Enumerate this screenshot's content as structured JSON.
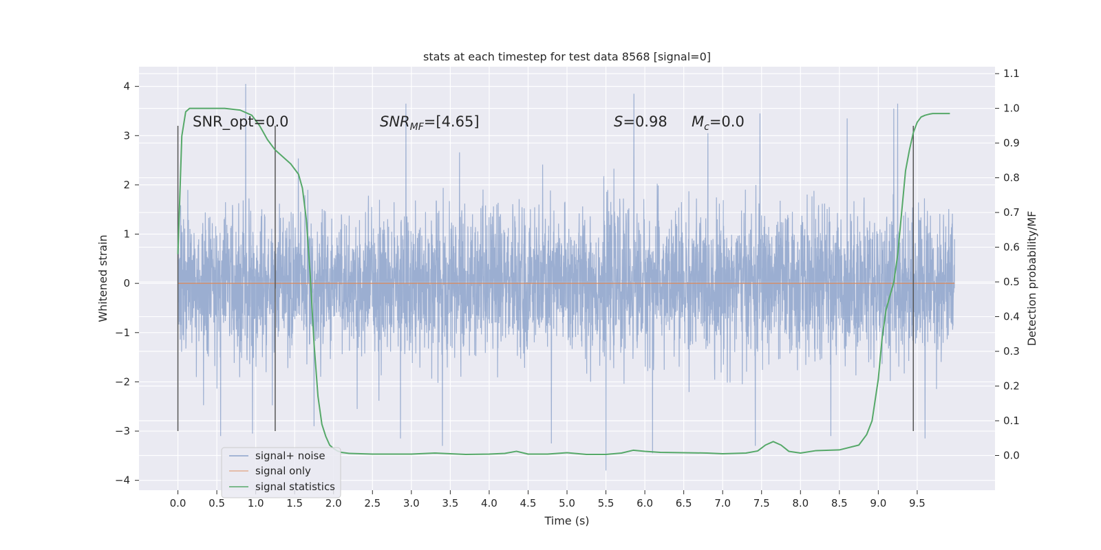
{
  "chart_data": {
    "type": "line",
    "title": "stats at each timestep for test data 8568 [signal=0]",
    "xlabel": "Time (s)",
    "ylabel": "Whitened strain",
    "ylabel_right": "Detection probability/MF",
    "xlim": [
      -0.5,
      10.5
    ],
    "ylim": [
      -4.2,
      4.4
    ],
    "ylim_right": [
      -0.1,
      1.12
    ],
    "xticks": [
      "0.0",
      "0.5",
      "1.0",
      "1.5",
      "2.0",
      "2.5",
      "3.0",
      "3.5",
      "4.0",
      "4.5",
      "5.0",
      "5.5",
      "6.0",
      "6.5",
      "7.0",
      "7.5",
      "8.0",
      "8.5",
      "9.0",
      "9.5"
    ],
    "yticks": [
      "4",
      "3",
      "2",
      "1",
      "0",
      "−1",
      "−2",
      "−3",
      "−4"
    ],
    "yticks_right": [
      "1.1",
      "1.0",
      "0.9",
      "0.8",
      "0.7",
      "0.6",
      "0.5",
      "0.4",
      "0.3",
      "0.2",
      "0.1",
      "0.0"
    ],
    "grid": true,
    "legend_position": "lower-left",
    "annotations": {
      "snr_opt": "SNR_opt=0.0",
      "snr_mf_main": "SNR",
      "snr_mf_sub": "MF",
      "snr_mf_rest": "=[4.65]",
      "s_main": "S",
      "s_rest": "=0.98",
      "mc_main": "M",
      "mc_sub": "c",
      "mc_rest": "=0.0"
    },
    "vlines_x": [
      0.0,
      1.25,
      9.45
    ],
    "vlines_yrange": [
      -3.0,
      3.2
    ],
    "series": [
      {
        "name": "signal+ noise",
        "color": "#4c72b0",
        "axis": "left",
        "x_range": [
          0.0,
          9.98
        ],
        "noise_sigma": 0.73,
        "spikes": [
          [
            0.87,
            4.05
          ],
          [
            2.93,
            3.65
          ],
          [
            5.86,
            3.85
          ],
          [
            7.48,
            3.45
          ],
          [
            9.2,
            3.55
          ],
          [
            9.25,
            3.65
          ],
          [
            5.5,
            -3.8
          ],
          [
            0.55,
            -3.1
          ],
          [
            6.1,
            -3.45
          ],
          [
            3.4,
            -3.3
          ],
          [
            7.42,
            -3.3
          ],
          [
            9.6,
            -3.15
          ],
          [
            2.86,
            -3.15
          ],
          [
            4.8,
            -3.25
          ],
          [
            8.6,
            3.35
          ],
          [
            1.75,
            -2.9
          ],
          [
            8.39,
            -3.1
          ]
        ]
      },
      {
        "name": "signal only",
        "color": "#dd8452",
        "axis": "left",
        "x": [
          0.0,
          9.98
        ],
        "y": [
          0.0,
          0.0
        ]
      },
      {
        "name": "signal statistics",
        "color": "#55a868",
        "axis": "right",
        "x": [
          0.0,
          0.05,
          0.1,
          0.15,
          0.25,
          0.4,
          0.6,
          0.8,
          0.95,
          1.05,
          1.15,
          1.25,
          1.35,
          1.45,
          1.55,
          1.6,
          1.65,
          1.7,
          1.75,
          1.8,
          1.85,
          1.9,
          1.95,
          2.0,
          2.05,
          2.1,
          2.2,
          2.35,
          2.5,
          3.0,
          3.3,
          3.7,
          4.0,
          4.2,
          4.35,
          4.5,
          4.75,
          5.0,
          5.25,
          5.5,
          5.7,
          5.85,
          6.0,
          6.2,
          6.5,
          6.8,
          7.0,
          7.3,
          7.45,
          7.55,
          7.65,
          7.75,
          7.85,
          8.0,
          8.2,
          8.5,
          8.75,
          8.85,
          8.92,
          9.0,
          9.05,
          9.1,
          9.2,
          9.25,
          9.3,
          9.35,
          9.4,
          9.45,
          9.5,
          9.55,
          9.6,
          9.65,
          9.7,
          9.8,
          9.92
        ],
        "y": [
          0.58,
          0.92,
          0.99,
          1.0,
          1.0,
          1.0,
          1.0,
          0.995,
          0.98,
          0.95,
          0.91,
          0.88,
          0.86,
          0.84,
          0.81,
          0.77,
          0.68,
          0.52,
          0.32,
          0.17,
          0.09,
          0.055,
          0.03,
          0.02,
          0.013,
          0.009,
          0.006,
          0.005,
          0.004,
          0.004,
          0.007,
          0.003,
          0.004,
          0.006,
          0.012,
          0.004,
          0.004,
          0.008,
          0.003,
          0.003,
          0.007,
          0.015,
          0.012,
          0.009,
          0.008,
          0.007,
          0.005,
          0.007,
          0.013,
          0.03,
          0.04,
          0.03,
          0.012,
          0.007,
          0.014,
          0.016,
          0.03,
          0.06,
          0.1,
          0.22,
          0.34,
          0.42,
          0.5,
          0.58,
          0.7,
          0.82,
          0.88,
          0.93,
          0.96,
          0.975,
          0.98,
          0.983,
          0.985,
          0.985,
          0.985
        ]
      }
    ]
  }
}
